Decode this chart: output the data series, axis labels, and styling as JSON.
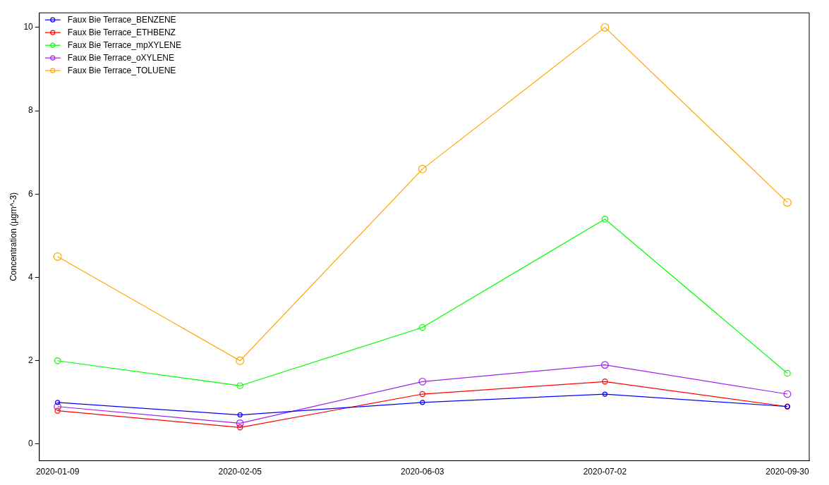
{
  "chart_data": {
    "type": "line",
    "ylabel": "Concentration (µgm^-3)",
    "categories": [
      "2020-01-09",
      "2020-02-05",
      "2020-06-03",
      "2020-07-02",
      "2020-09-30"
    ],
    "series": [
      {
        "name": "Faux Bie Terrace_BENZENE",
        "color": "#0000ff",
        "values": [
          1.0,
          0.7,
          1.0,
          1.2,
          0.9
        ]
      },
      {
        "name": "Faux Bie Terrace_ETHBENZ",
        "color": "#ff0000",
        "values": [
          0.8,
          0.4,
          1.2,
          1.5,
          0.9
        ]
      },
      {
        "name": "Faux Bie Terrace_mpXYLENE",
        "color": "#00ff00",
        "values": [
          2.0,
          1.4,
          2.8,
          5.4,
          1.7
        ]
      },
      {
        "name": "Faux Bie Terrace_oXYLENE",
        "color": "#a020f0",
        "values": [
          0.9,
          0.5,
          1.5,
          1.9,
          1.2
        ]
      },
      {
        "name": "Faux Bie Terrace_TOLUENE",
        "color": "#ffa500",
        "values": [
          4.5,
          2.0,
          6.6,
          10.0,
          5.8
        ]
      }
    ],
    "ylim": [
      -0.4,
      10.35
    ],
    "yticks": [
      0,
      2,
      4,
      6,
      8,
      10
    ],
    "grid": false,
    "legend": "top left",
    "marker": "circle",
    "line_style": "solid"
  }
}
